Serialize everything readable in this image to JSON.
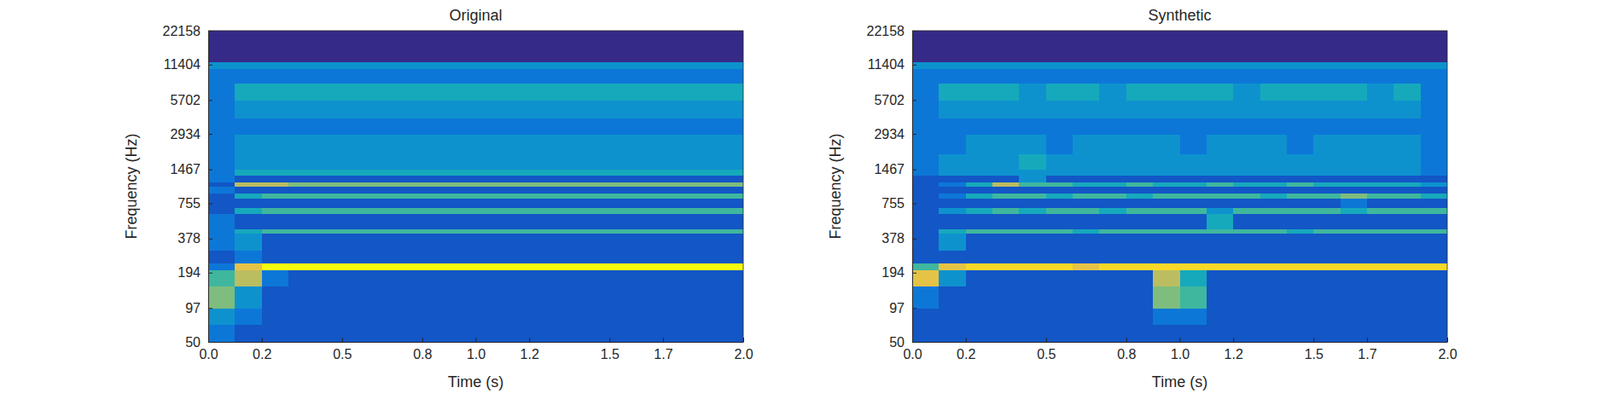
{
  "chart_data": [
    {
      "type": "heatmap",
      "title": "Original",
      "xlabel": "Time (s)",
      "ylabel": "Frequency (Hz)",
      "log": "y",
      "xlim": [
        0,
        2
      ],
      "ylim": [
        50,
        22158
      ],
      "xticks": [
        {
          "value": 0,
          "label": "0.0"
        },
        0.2,
        0.5,
        0.8,
        {
          "value": 1,
          "label": "1.0"
        },
        1.2,
        1.5,
        1.7,
        {
          "value": 2,
          "label": "2.0"
        }
      ],
      "yticks": [
        50,
        97,
        194,
        378,
        755,
        1467,
        2934,
        5702,
        11404,
        22158
      ],
      "zlim": [
        0,
        10
      ],
      "x_edges": [
        0,
        0.1,
        0.2,
        0.3,
        0.4,
        0.5,
        0.6,
        0.7,
        0.8,
        0.9,
        1.0,
        1.1,
        1.2,
        1.3,
        1.4,
        1.5,
        1.6,
        1.7,
        1.8,
        1.9,
        2.0
      ],
      "y_edges": [
        50,
        70,
        97,
        150,
        205,
        235,
        300,
        420,
        460,
        620,
        690,
        840,
        920,
        1060,
        1150,
        1300,
        1467,
        2000,
        2934,
        4000,
        5702,
        8000,
        10500,
        12000,
        22158
      ],
      "values": [
        [
          2,
          1,
          1,
          1,
          1,
          1,
          1,
          1,
          1,
          1,
          1,
          1,
          1,
          1,
          1,
          1,
          1,
          1,
          1,
          1
        ],
        [
          3,
          2,
          1,
          1,
          1,
          1,
          1,
          1,
          1,
          1,
          1,
          1,
          1,
          1,
          1,
          1,
          1,
          1,
          1,
          1
        ],
        [
          6,
          3,
          1,
          1,
          1,
          1,
          1,
          1,
          1,
          1,
          1,
          1,
          1,
          1,
          1,
          1,
          1,
          1,
          1,
          1
        ],
        [
          5,
          7,
          2,
          1,
          1,
          1,
          1,
          1,
          1,
          1,
          1,
          1,
          1,
          1,
          1,
          1,
          1,
          1,
          1,
          1
        ],
        [
          2,
          8,
          10,
          10,
          10,
          10,
          10,
          10,
          10,
          10,
          10,
          10,
          10,
          10,
          10,
          10,
          10,
          10,
          10,
          10
        ],
        [
          1,
          2,
          1,
          1,
          1,
          1,
          1,
          1,
          1,
          1,
          1,
          1,
          1,
          1,
          1,
          1,
          1,
          1,
          1,
          1
        ],
        [
          2,
          3,
          1,
          1,
          1,
          1,
          1,
          1,
          1,
          1,
          1,
          1,
          1,
          1,
          1,
          1,
          1,
          1,
          1,
          1
        ],
        [
          2,
          4,
          5,
          5,
          5,
          5,
          5,
          5,
          5,
          5,
          5,
          5,
          5,
          5,
          5,
          5,
          5,
          5,
          5,
          5
        ],
        [
          2,
          1,
          1,
          1,
          1,
          1,
          1,
          1,
          1,
          1,
          1,
          1,
          1,
          1,
          1,
          1,
          1,
          1,
          1,
          1
        ],
        [
          1,
          4,
          5,
          5,
          5,
          5,
          5,
          5,
          5,
          5,
          5,
          5,
          5,
          5,
          5,
          5,
          5,
          5,
          5,
          5
        ],
        [
          1,
          1,
          1,
          1,
          1,
          1,
          1,
          1,
          1,
          1,
          1,
          1,
          1,
          1,
          1,
          1,
          1,
          1,
          1,
          1
        ],
        [
          1,
          4,
          5,
          5,
          5,
          5,
          5,
          5,
          5,
          5,
          5,
          5,
          5,
          5,
          5,
          5,
          5,
          5,
          5,
          5
        ],
        [
          2,
          1,
          1,
          1,
          1,
          1,
          1,
          1,
          1,
          1,
          1,
          1,
          1,
          1,
          1,
          1,
          1,
          1,
          1,
          1
        ],
        [
          1,
          7,
          7,
          6,
          6,
          6,
          6,
          6,
          6,
          6,
          6,
          6,
          6,
          6,
          6,
          6,
          6,
          6,
          6,
          6
        ],
        [
          2,
          1,
          1,
          1,
          1,
          1,
          1,
          1,
          1,
          1,
          1,
          1,
          1,
          1,
          1,
          1,
          1,
          1,
          1,
          1
        ],
        [
          2,
          4,
          4,
          4,
          4,
          4,
          4,
          4,
          4,
          4,
          4,
          4,
          4,
          4,
          4,
          4,
          4,
          4,
          4,
          4
        ],
        [
          2,
          3,
          3,
          3,
          3,
          3,
          3,
          3,
          3,
          3,
          3,
          3,
          3,
          3,
          3,
          3,
          3,
          3,
          3,
          3
        ],
        [
          2,
          3,
          3,
          3,
          3,
          3,
          3,
          3,
          3,
          3,
          3,
          3,
          3,
          3,
          3,
          3,
          3,
          3,
          3,
          3
        ],
        [
          2,
          2,
          2,
          2,
          2,
          2,
          2,
          2,
          2,
          2,
          2,
          2,
          2,
          2,
          2,
          2,
          2,
          2,
          2,
          2
        ],
        [
          2,
          3,
          3,
          3,
          3,
          3,
          3,
          3,
          3,
          3,
          3,
          3,
          3,
          3,
          3,
          3,
          3,
          3,
          3,
          3
        ],
        [
          2,
          4,
          4,
          4,
          4,
          4,
          4,
          4,
          4,
          4,
          4,
          4,
          4,
          4,
          4,
          4,
          4,
          4,
          4,
          4
        ],
        [
          2,
          2,
          2,
          2,
          2,
          2,
          2,
          2,
          2,
          2,
          2,
          2,
          2,
          2,
          2,
          2,
          2,
          2,
          2,
          2
        ],
        [
          3,
          3,
          3,
          3,
          3,
          3,
          3,
          3,
          3,
          3,
          3,
          3,
          3,
          3,
          3,
          3,
          3,
          3,
          3,
          3
        ],
        [
          0,
          0,
          0,
          0,
          0,
          0,
          0,
          0,
          0,
          0,
          0,
          0,
          0,
          0,
          0,
          0,
          0,
          0,
          0,
          0
        ]
      ]
    },
    {
      "type": "heatmap",
      "title": "Synthetic",
      "xlabel": "Time (s)",
      "ylabel": "Frequency (Hz)",
      "log": "y",
      "xlim": [
        0,
        2
      ],
      "ylim": [
        50,
        22158
      ],
      "xticks": [
        {
          "value": 0,
          "label": "0.0"
        },
        0.2,
        0.5,
        0.8,
        {
          "value": 1,
          "label": "1.0"
        },
        1.2,
        1.5,
        1.7,
        {
          "value": 2,
          "label": "2.0"
        }
      ],
      "yticks": [
        50,
        97,
        194,
        378,
        755,
        1467,
        2934,
        5702,
        11404,
        22158
      ],
      "zlim": [
        0,
        10
      ],
      "x_edges": [
        0,
        0.1,
        0.2,
        0.3,
        0.4,
        0.5,
        0.6,
        0.7,
        0.8,
        0.9,
        1.0,
        1.1,
        1.2,
        1.3,
        1.4,
        1.5,
        1.6,
        1.7,
        1.8,
        1.9,
        2.0
      ],
      "y_edges": [
        50,
        70,
        97,
        150,
        205,
        235,
        300,
        420,
        460,
        620,
        690,
        840,
        920,
        1060,
        1150,
        1300,
        1467,
        2000,
        2934,
        4000,
        5702,
        8000,
        10500,
        12000,
        22158
      ],
      "values": [
        [
          1,
          1,
          1,
          1,
          1,
          1,
          1,
          1,
          1,
          1,
          1,
          1,
          1,
          1,
          1,
          1,
          1,
          1,
          1,
          1
        ],
        [
          1,
          1,
          1,
          1,
          1,
          1,
          1,
          1,
          1,
          2,
          2,
          1,
          1,
          1,
          1,
          1,
          1,
          1,
          1,
          1
        ],
        [
          2,
          1,
          1,
          1,
          1,
          1,
          1,
          1,
          1,
          6,
          5,
          1,
          1,
          1,
          1,
          1,
          1,
          1,
          1,
          1
        ],
        [
          8,
          3,
          1,
          1,
          1,
          1,
          1,
          1,
          1,
          7,
          4,
          1,
          1,
          1,
          1,
          1,
          1,
          1,
          1,
          1
        ],
        [
          5,
          8,
          9,
          9,
          9,
          9,
          8,
          9,
          9,
          9,
          9,
          9,
          9,
          9,
          9,
          9,
          9,
          9,
          9,
          9
        ],
        [
          1,
          1,
          1,
          1,
          1,
          1,
          1,
          1,
          1,
          1,
          1,
          1,
          1,
          1,
          1,
          1,
          1,
          1,
          1,
          1
        ],
        [
          1,
          3,
          1,
          1,
          1,
          1,
          1,
          1,
          1,
          1,
          1,
          1,
          1,
          1,
          1,
          1,
          1,
          1,
          1,
          1
        ],
        [
          1,
          4,
          5,
          5,
          5,
          5,
          4,
          5,
          5,
          5,
          5,
          5,
          5,
          5,
          4,
          5,
          5,
          5,
          5,
          5
        ],
        [
          1,
          1,
          1,
          1,
          1,
          1,
          1,
          1,
          1,
          1,
          1,
          4,
          1,
          1,
          1,
          1,
          1,
          1,
          1,
          1
        ],
        [
          1,
          3,
          4,
          5,
          4,
          5,
          5,
          4,
          5,
          5,
          5,
          3,
          5,
          5,
          5,
          5,
          4,
          5,
          5,
          5
        ],
        [
          1,
          1,
          1,
          1,
          1,
          1,
          1,
          1,
          1,
          1,
          1,
          1,
          1,
          1,
          1,
          1,
          2,
          1,
          1,
          1
        ],
        [
          1,
          2,
          4,
          5,
          5,
          4,
          5,
          5,
          4,
          5,
          5,
          5,
          5,
          4,
          5,
          5,
          6,
          5,
          5,
          4
        ],
        [
          1,
          1,
          1,
          1,
          1,
          1,
          1,
          1,
          1,
          1,
          1,
          1,
          1,
          1,
          1,
          1,
          1,
          1,
          1,
          1
        ],
        [
          1,
          2,
          4,
          7,
          5,
          5,
          4,
          4,
          5,
          4,
          4,
          5,
          4,
          4,
          5,
          4,
          4,
          4,
          4,
          3
        ],
        [
          1,
          1,
          1,
          1,
          3,
          1,
          1,
          1,
          1,
          1,
          1,
          1,
          1,
          1,
          1,
          1,
          1,
          1,
          1,
          1
        ],
        [
          2,
          3,
          3,
          3,
          3,
          3,
          3,
          3,
          3,
          3,
          3,
          3,
          3,
          3,
          3,
          3,
          3,
          3,
          3,
          2
        ],
        [
          2,
          3,
          3,
          3,
          4,
          3,
          3,
          3,
          3,
          3,
          3,
          3,
          3,
          3,
          3,
          3,
          3,
          3,
          3,
          2
        ],
        [
          2,
          2,
          3,
          3,
          3,
          2,
          3,
          3,
          3,
          3,
          2,
          3,
          3,
          3,
          2,
          3,
          3,
          3,
          3,
          2
        ],
        [
          2,
          2,
          2,
          2,
          2,
          2,
          2,
          2,
          2,
          2,
          2,
          2,
          2,
          2,
          2,
          2,
          2,
          2,
          2,
          2
        ],
        [
          2,
          3,
          3,
          3,
          3,
          3,
          3,
          3,
          3,
          3,
          3,
          3,
          3,
          3,
          3,
          3,
          3,
          3,
          3,
          2
        ],
        [
          2,
          4,
          4,
          4,
          3,
          4,
          4,
          3,
          4,
          4,
          4,
          4,
          3,
          4,
          4,
          4,
          4,
          3,
          4,
          2
        ],
        [
          2,
          2,
          2,
          2,
          2,
          2,
          2,
          2,
          2,
          2,
          2,
          2,
          2,
          2,
          2,
          2,
          2,
          2,
          2,
          2
        ],
        [
          3,
          3,
          3,
          3,
          3,
          3,
          3,
          3,
          3,
          3,
          3,
          3,
          3,
          3,
          3,
          3,
          3,
          3,
          3,
          3
        ],
        [
          0,
          0,
          0,
          0,
          0,
          0,
          0,
          0,
          0,
          0,
          0,
          0,
          0,
          0,
          0,
          0,
          0,
          0,
          0,
          0
        ]
      ]
    }
  ]
}
